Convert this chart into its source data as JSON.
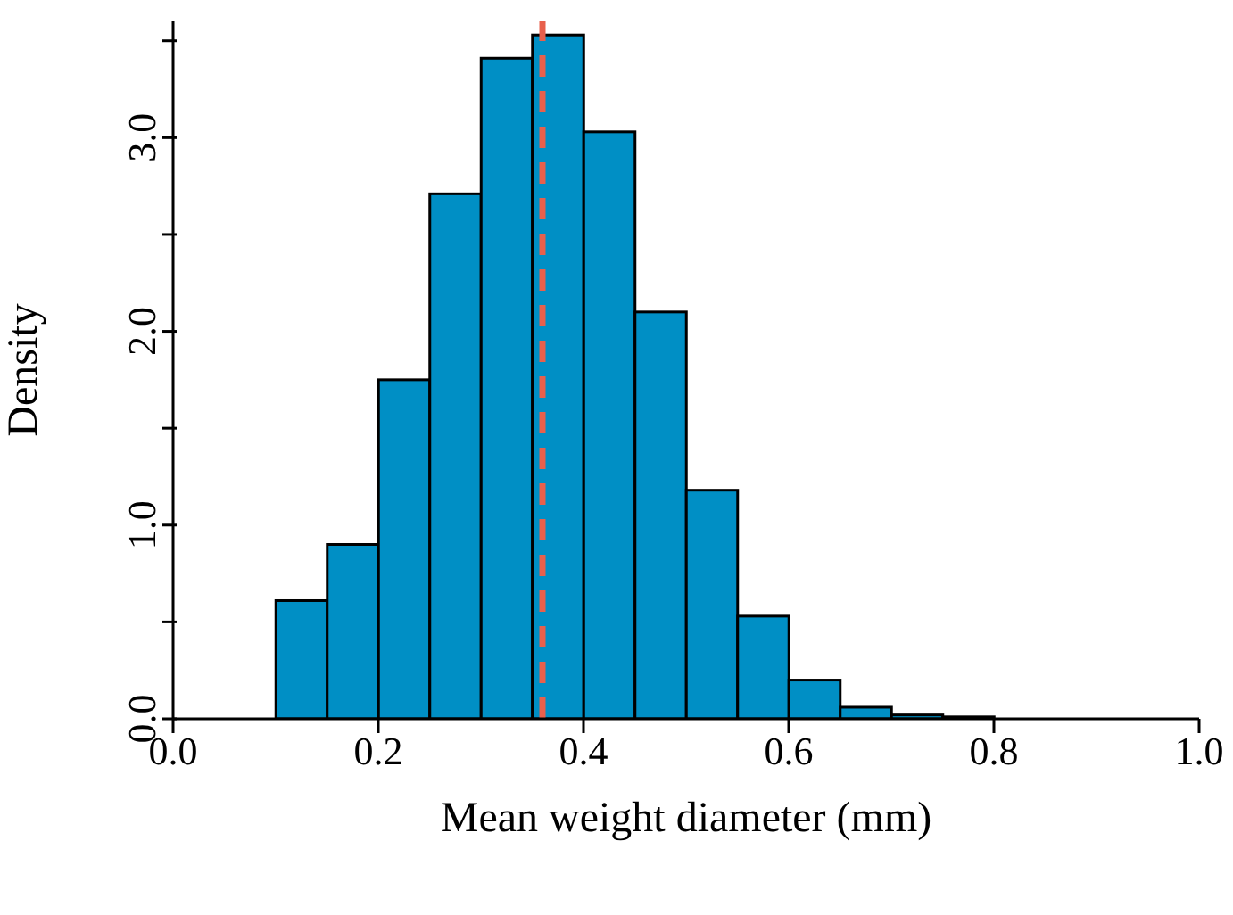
{
  "chart_data": {
    "type": "histogram",
    "xlabel": "Mean weight diameter (mm)",
    "ylabel": "Density",
    "bins": [
      0.1,
      0.15,
      0.2,
      0.25,
      0.3,
      0.35,
      0.4,
      0.45,
      0.5,
      0.55,
      0.6,
      0.65,
      0.7,
      0.75,
      0.8,
      0.85,
      0.9,
      0.95,
      1.0
    ],
    "values": [
      0.61,
      0.9,
      1.75,
      2.71,
      3.41,
      3.53,
      3.03,
      2.1,
      1.18,
      0.53,
      0.2,
      0.06,
      0.02,
      0.01,
      0,
      0,
      0,
      0
    ],
    "color": "#008fc5",
    "xlim": [
      0,
      1.0
    ],
    "xticks": [
      {
        "value": 0,
        "label": "0.0"
      },
      0.2,
      0.4,
      0.6,
      0.8,
      {
        "value": 1,
        "label": "1.0"
      }
    ],
    "ylim": [
      0,
      3.6
    ],
    "yticks": [
      {
        "value": 0,
        "label": "0.0"
      },
      {
        "value": 0.5,
        "label": null
      },
      {
        "value": 1,
        "label": "1.0"
      },
      {
        "value": 1.5,
        "label": null
      },
      {
        "value": 2,
        "label": "2.0"
      },
      {
        "value": 2.5,
        "label": null
      },
      {
        "value": 3,
        "label": "3.0"
      },
      {
        "value": 3.5,
        "label": null
      }
    ],
    "ref_lines": [
      {
        "axis": "x",
        "value": 0.36,
        "color": "#e8604c",
        "line_style": "dashed"
      }
    ],
    "grid": false,
    "legend": false
  }
}
